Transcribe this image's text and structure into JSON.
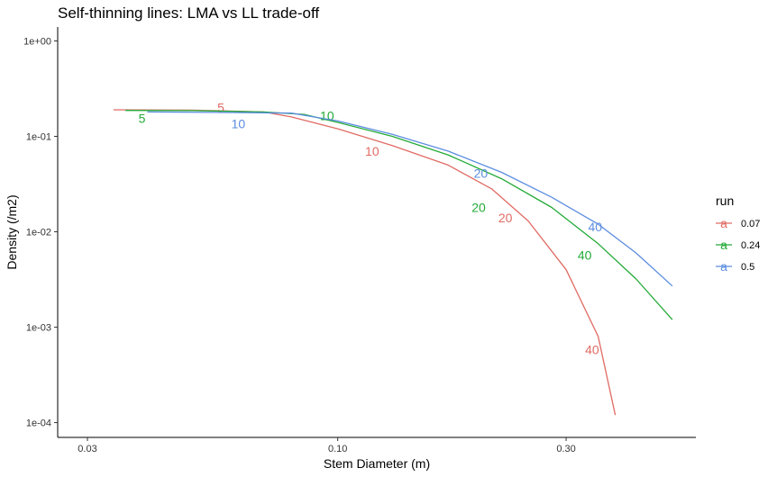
{
  "chart_data": {
    "type": "line",
    "title": "Self-thinning lines: LMA vs LL trade-off",
    "xlabel": "Stem Diameter (m)",
    "ylabel": "Density (/m2)",
    "x_scale": "log",
    "y_scale": "log",
    "xlim": [
      0.026,
      0.56
    ],
    "ylim": [
      7e-05,
      1.4
    ],
    "x_ticks": [
      0.03,
      0.1,
      0.3
    ],
    "x_tick_labels": [
      "0.03",
      "0.10",
      "0.30"
    ],
    "y_ticks": [
      0.0001,
      0.001,
      0.01,
      0.1,
      1
    ],
    "y_tick_labels": [
      "1e-04",
      "1e-03",
      "1e-02",
      "1e-01",
      "1e+00"
    ],
    "grid": false,
    "legend": {
      "title": "run",
      "position": "right",
      "key_glyph": "a",
      "entries": [
        "0.07",
        "0.24",
        "0.5"
      ]
    },
    "series": [
      {
        "name": "0.07",
        "color": "#E06B64",
        "x": [
          0.034,
          0.05,
          0.07,
          0.08,
          0.1,
          0.13,
          0.17,
          0.21,
          0.25,
          0.3,
          0.35,
          0.38
        ],
        "y": [
          0.19,
          0.188,
          0.18,
          0.16,
          0.12,
          0.08,
          0.05,
          0.028,
          0.013,
          0.004,
          0.0008,
          0.00012
        ],
        "labels": [
          {
            "text": "5",
            "x": 0.057,
            "y": 0.2
          },
          {
            "text": "10",
            "x": 0.118,
            "y": 0.07
          },
          {
            "text": "20",
            "x": 0.224,
            "y": 0.014
          },
          {
            "text": "40",
            "x": 0.34,
            "y": 0.00058
          }
        ]
      },
      {
        "name": "0.24",
        "color": "#24AA38",
        "x": [
          0.036,
          0.05,
          0.07,
          0.085,
          0.1,
          0.13,
          0.17,
          0.22,
          0.28,
          0.35,
          0.42,
          0.5
        ],
        "y": [
          0.187,
          0.186,
          0.18,
          0.17,
          0.14,
          0.1,
          0.064,
          0.036,
          0.018,
          0.0075,
          0.0032,
          0.0012
        ],
        "labels": [
          {
            "text": "5",
            "x": 0.039,
            "y": 0.155
          },
          {
            "text": "10",
            "x": 0.095,
            "y": 0.165
          },
          {
            "text": "20",
            "x": 0.197,
            "y": 0.018
          },
          {
            "text": "40",
            "x": 0.328,
            "y": 0.0057
          }
        ]
      },
      {
        "name": "0.5",
        "color": "#5C8DE0",
        "x": [
          0.04,
          0.06,
          0.08,
          0.1,
          0.13,
          0.17,
          0.22,
          0.28,
          0.35,
          0.42,
          0.5
        ],
        "y": [
          0.18,
          0.178,
          0.175,
          0.145,
          0.105,
          0.07,
          0.042,
          0.023,
          0.012,
          0.006,
          0.0027
        ],
        "labels": [
          {
            "text": "10",
            "x": 0.062,
            "y": 0.135
          },
          {
            "text": "20",
            "x": 0.199,
            "y": 0.041
          },
          {
            "text": "40",
            "x": 0.345,
            "y": 0.0113
          }
        ]
      }
    ]
  }
}
